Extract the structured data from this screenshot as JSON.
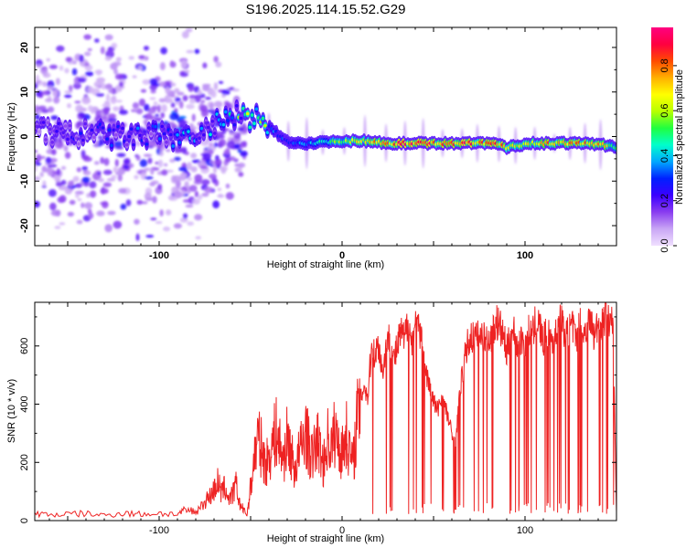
{
  "title": "S196.2025.114.15.52.G29",
  "chart_data": [
    {
      "type": "heatmap",
      "xlabel": "Height of straight line (km)",
      "ylabel": "Frequency (Hz)",
      "xlim": [
        -168,
        150
      ],
      "ylim": [
        -24.5,
        24.5
      ],
      "xticks": [
        -100,
        0,
        100
      ],
      "yticks": [
        -20,
        -10,
        0,
        10,
        20
      ],
      "colorbar": {
        "label": "Normalized spectral amplitude",
        "range": [
          0,
          0.97
        ],
        "ticks": [
          0.0,
          0.2,
          0.4,
          0.6,
          0.8
        ],
        "colormap": [
          "#f0e0ff",
          "#c9a6f5",
          "#8a3df0",
          "#3b00ff",
          "#0020ff",
          "#00a8ff",
          "#00ffcc",
          "#20ff40",
          "#b8ff00",
          "#ffff00",
          "#ffb000",
          "#ff4a00",
          "#ff0040",
          "#ff0080"
        ]
      },
      "ridge": {
        "x": [
          -168,
          -140,
          -120,
          -100,
          -85,
          -75,
          -65,
          -58,
          -52,
          -46,
          -40,
          -35,
          -30,
          -25,
          -15,
          -5,
          5,
          15,
          25,
          35,
          45,
          55,
          65,
          75,
          85,
          90,
          95,
          105,
          115,
          125,
          135,
          145,
          150
        ],
        "freq_hz": [
          1,
          0.5,
          0,
          0,
          0,
          1,
          3.5,
          4.5,
          4,
          4,
          2.5,
          0.5,
          -1,
          -1.5,
          -1.5,
          -1,
          -1,
          -1,
          -1.5,
          -1.5,
          -1.5,
          -1.5,
          -1.5,
          -1.5,
          -1.5,
          -2.5,
          -2,
          -1.5,
          -1.5,
          -1.5,
          -1.5,
          -2,
          -2.5
        ],
        "amplitude": [
          0.15,
          0.2,
          0.25,
          0.25,
          0.3,
          0.3,
          0.35,
          0.4,
          0.45,
          0.45,
          0.4,
          0.35,
          0.3,
          0.35,
          0.45,
          0.55,
          0.65,
          0.75,
          0.85,
          0.9,
          0.92,
          0.92,
          0.9,
          0.85,
          0.85,
          0.8,
          0.7,
          0.75,
          0.8,
          0.8,
          0.78,
          0.75,
          0.5
        ]
      }
    },
    {
      "type": "line",
      "xlabel": "Height of straight line (km)",
      "ylabel": "SNR (10 * v/v)",
      "xlim": [
        -168,
        150
      ],
      "ylim": [
        0,
        750
      ],
      "xticks": [
        -100,
        0,
        100
      ],
      "yticks": [
        0,
        200,
        400,
        600
      ],
      "color": "#ee2222",
      "series": [
        {
          "x": [
            -168,
            -160,
            -150,
            -140,
            -130,
            -120,
            -110,
            -100,
            -90,
            -85,
            -80,
            -75,
            -72,
            -70,
            -68,
            -66,
            -64,
            -62,
            -60,
            -58,
            -56,
            -54,
            -52,
            -50,
            -48,
            -46,
            -44,
            -42,
            -40,
            -38,
            -36,
            -34,
            -32,
            -30,
            -28,
            -26,
            -24,
            -22,
            -20,
            -18,
            -16,
            -14,
            -12,
            -10,
            -8,
            -6,
            -4,
            -2,
            0,
            2,
            4,
            6,
            8,
            10,
            12,
            14,
            16,
            18,
            20,
            22,
            24,
            26,
            28,
            30,
            32,
            34,
            36,
            38,
            40,
            42,
            44,
            46,
            48,
            50,
            52,
            54,
            56,
            58,
            60,
            62,
            64,
            66,
            68,
            70,
            72,
            74,
            76,
            78,
            80,
            82,
            84,
            86,
            88,
            90,
            92,
            94,
            96,
            98,
            100,
            102,
            104,
            106,
            108,
            110,
            112,
            114,
            116,
            118,
            120,
            122,
            124,
            126,
            128,
            130,
            132,
            134,
            136,
            138,
            140,
            142,
            144,
            146,
            148,
            150
          ],
          "y": [
            25,
            20,
            22,
            24,
            18,
            26,
            22,
            25,
            22,
            35,
            30,
            70,
            90,
            110,
            140,
            100,
            120,
            80,
            90,
            130,
            60,
            40,
            20,
            120,
            230,
            300,
            260,
            200,
            230,
            280,
            320,
            270,
            220,
            300,
            250,
            180,
            230,
            270,
            330,
            260,
            220,
            300,
            250,
            200,
            300,
            260,
            320,
            280,
            240,
            320,
            260,
            200,
            360,
            420,
            480,
            430,
            600,
            580,
            620,
            520,
            600,
            640,
            560,
            600,
            660,
            630,
            700,
            620,
            680,
            660,
            610,
            520,
            460,
            420,
            380,
            430,
            400,
            360,
            300,
            260,
            420,
            520,
            600,
            640,
            640,
            640,
            640,
            640,
            640,
            640,
            700,
            680,
            650,
            590,
            640,
            660,
            600,
            640,
            620,
            660,
            640,
            700,
            680,
            620,
            660,
            640,
            620,
            680,
            700,
            640,
            660,
            680,
            620,
            690,
            650,
            680,
            700,
            640,
            700,
            680,
            720,
            680,
            700,
            30
          ]
        }
      ]
    }
  ]
}
